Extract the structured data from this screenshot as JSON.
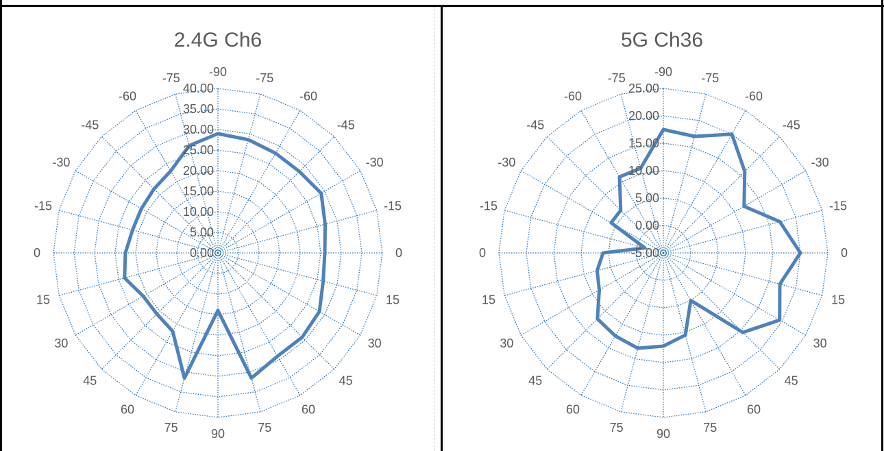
{
  "chart_data": [
    {
      "type": "radar",
      "title": "2.4G Ch6",
      "angle_labels": [
        "-90",
        "-75",
        "-60",
        "-45",
        "-30",
        "-15",
        "0",
        "15",
        "30",
        "45",
        "60",
        "75",
        "90",
        "75",
        "60",
        "45",
        "30",
        "15",
        "0",
        "-15",
        "-30",
        "-45",
        "-60",
        "-75"
      ],
      "radial_ticks": [
        "0.00",
        "5.00",
        "10.00",
        "15.00",
        "20.00",
        "25.00",
        "30.00",
        "35.00",
        "40.00"
      ],
      "rlim": [
        0,
        40
      ],
      "series": [
        {
          "color": "#4f81bd",
          "values": [
            29,
            28.5,
            28,
            28,
            29,
            27,
            26,
            26.5,
            28.5,
            29,
            29,
            31.5,
            14,
            31.5,
            22,
            21,
            21,
            23.5,
            22.5,
            21.5,
            21.5,
            22,
            23,
            27
          ]
        }
      ],
      "grid": true
    },
    {
      "type": "radar",
      "title": "5G Ch36",
      "angle_labels": [
        "-90",
        "-75",
        "-60",
        "-45",
        "-30",
        "-15",
        "0",
        "15",
        "30",
        "45",
        "60",
        "75",
        "90",
        "75",
        "60",
        "45",
        "30",
        "15",
        "0",
        "-15",
        "-30",
        "-45",
        "-60",
        "-75"
      ],
      "radial_ticks": [
        "-5.00",
        "0.00",
        "5.00",
        "10.00",
        "15.00",
        "20.00",
        "25.00"
      ],
      "rlim": [
        -5,
        25
      ],
      "series": [
        {
          "color": "#4f81bd",
          "values": [
            17.5,
            17,
            20,
            16,
            12,
            17,
            20,
            17,
            19.5,
            15.5,
            5,
            10.5,
            12,
            13,
            12.5,
            12,
            8.5,
            7.5,
            6,
            -1.5,
            6,
            6,
            11,
            11
          ]
        }
      ],
      "grid": true
    }
  ]
}
